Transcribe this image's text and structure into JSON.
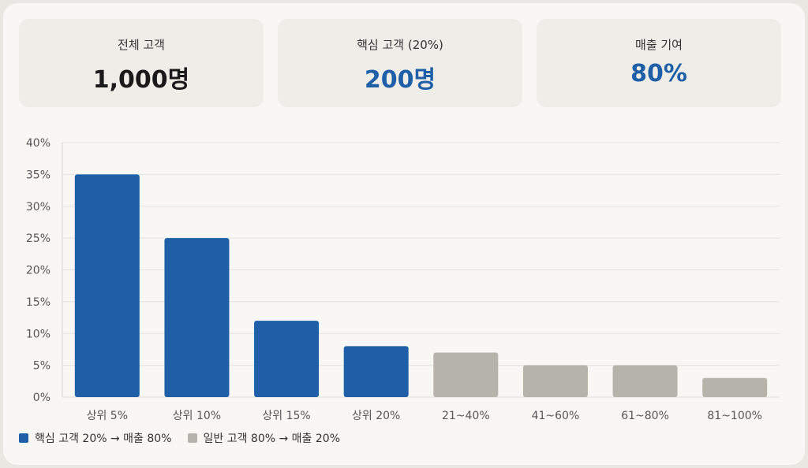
{
  "stats": [
    {
      "label": "전체 고객",
      "value": "1,000명",
      "emphasis": "dark"
    },
    {
      "label": "핵심 고객 (20%)",
      "value": "200명",
      "emphasis": "blue"
    },
    {
      "label": "매출 기여",
      "value": "80%",
      "emphasis": "blue"
    }
  ],
  "colors": {
    "core": "#1e5fa8",
    "general": "#b5b3aa"
  },
  "chart_data": {
    "type": "bar",
    "categories": [
      "상위 5%",
      "상위 10%",
      "상위 15%",
      "상위 20%",
      "21~40%",
      "41~60%",
      "61~80%",
      "81~100%"
    ],
    "values": [
      35,
      25,
      12,
      8,
      7,
      5,
      5,
      3
    ],
    "groups": [
      "core",
      "core",
      "core",
      "core",
      "general",
      "general",
      "general",
      "general"
    ],
    "ylim": [
      0,
      40
    ],
    "yticks": [
      "0%",
      "5%",
      "10%",
      "15%",
      "20%",
      "25%",
      "30%",
      "35%",
      "40%"
    ],
    "grid": true,
    "legend_position": "bottom-left",
    "legend": [
      {
        "key": "core",
        "label": "핵심 고객 20% → 매출 80%"
      },
      {
        "key": "general",
        "label": "일반 고객 80% → 매출 20%"
      }
    ]
  }
}
